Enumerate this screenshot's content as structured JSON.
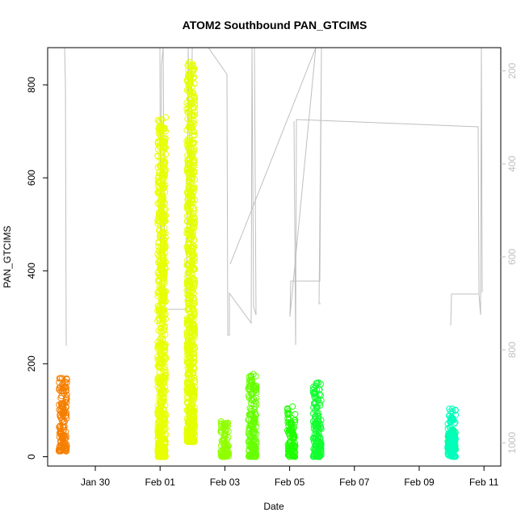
{
  "chart_data": {
    "type": "scatter",
    "title": "ATOM2 Southbound PAN_GTCIMS",
    "xlabel": "Date",
    "ylabel": "PAN_GTCIMS",
    "x_ticks": [
      "Jan 30",
      "Feb 01",
      "Feb 03",
      "Feb 05",
      "Feb 07",
      "Feb 09",
      "Feb 11"
    ],
    "y_ticks": [
      0,
      200,
      400,
      600,
      800
    ],
    "y_right_ticks": [
      200,
      400,
      600,
      800,
      1000
    ],
    "ylim": [
      -20,
      880
    ],
    "y_right_lim": [
      1050,
      150
    ],
    "y_right_reversed": true,
    "right_axis_color": "#bfbfbf",
    "grid": false,
    "series": [
      {
        "date": "2016-01-29",
        "color": "#f57f00",
        "min": 12,
        "max": 170
      },
      {
        "date": "2016-02-01",
        "color": "#e8ff00",
        "min": 0,
        "max": 730
      },
      {
        "date": "2016-02-01",
        "color": "#e4ff00",
        "min": 32,
        "max": 850
      },
      {
        "date": "2016-02-03",
        "color": "#90ff00",
        "min": 0,
        "max": 80
      },
      {
        "date": "2016-02-03",
        "color": "#66ff00",
        "min": 0,
        "max": 178
      },
      {
        "date": "2016-02-05",
        "color": "#1eff00",
        "min": 0,
        "max": 108
      },
      {
        "date": "2016-02-05",
        "color": "#10ff30",
        "min": 0,
        "max": 160
      },
      {
        "date": "2016-02-10",
        "color": "#00ff90",
        "min": 15,
        "max": 62
      },
      {
        "date": "2016-02-10",
        "color": "#00ffbb",
        "min": 0,
        "max": 105
      }
    ],
    "altitude_line_color": "#bfbfbf"
  }
}
